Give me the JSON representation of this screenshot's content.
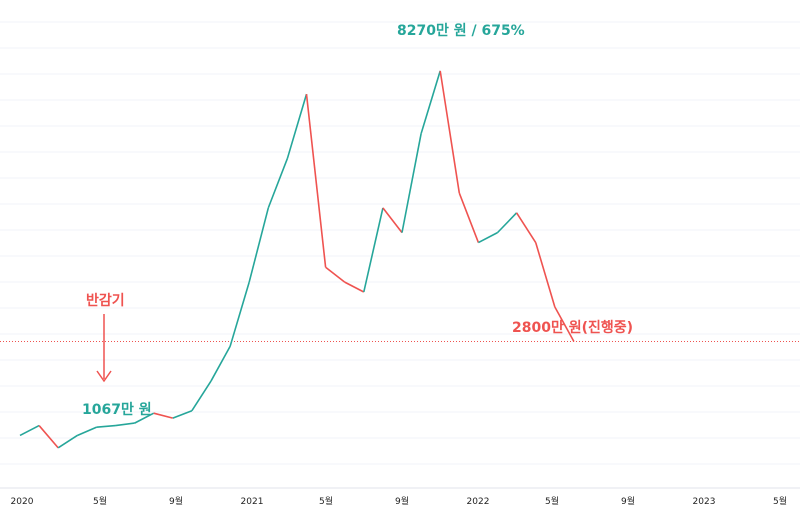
{
  "colors": {
    "up": "#26a69a",
    "down": "#ef5350",
    "grid": "#f0f3fa",
    "axis": "#e0e3eb",
    "dotted": "#ef5350"
  },
  "annotations": {
    "peak": "8270만 원 / 675%",
    "halving": "반감기",
    "halving_price": "1067만 원",
    "current": "2800만 원(진행중)"
  },
  "chart_data": {
    "type": "line",
    "x_ticks": [
      "2020",
      "5월",
      "9월",
      "2021",
      "5월",
      "9월",
      "2022",
      "5월",
      "9월",
      "2023",
      "5월"
    ],
    "y_unit": "만 원",
    "ylim": [
      0,
      9500
    ],
    "reference_line": 2800,
    "points": [
      [
        "2020-01",
        900
      ],
      [
        "2020-02",
        1100
      ],
      [
        "2020-03",
        650
      ],
      [
        "2020-04",
        900
      ],
      [
        "2020-05",
        1067
      ],
      [
        "2020-06",
        1100
      ],
      [
        "2020-07",
        1150
      ],
      [
        "2020-08",
        1350
      ],
      [
        "2020-09",
        1250
      ],
      [
        "2020-10",
        1400
      ],
      [
        "2020-11",
        2000
      ],
      [
        "2020-12",
        2700
      ],
      [
        "2021-01",
        4000
      ],
      [
        "2021-02",
        5500
      ],
      [
        "2021-03",
        6500
      ],
      [
        "2021-04",
        7800
      ],
      [
        "2021-05",
        4300
      ],
      [
        "2021-06",
        4000
      ],
      [
        "2021-07",
        3800
      ],
      [
        "2021-08",
        5500
      ],
      [
        "2021-09",
        5000
      ],
      [
        "2021-10",
        7000
      ],
      [
        "2021-11",
        8270
      ],
      [
        "2021-12",
        5800
      ],
      [
        "2022-01",
        4800
      ],
      [
        "2022-02",
        5000
      ],
      [
        "2022-03",
        5400
      ],
      [
        "2022-04",
        4800
      ],
      [
        "2022-05",
        3500
      ],
      [
        "2022-06",
        2800
      ]
    ]
  }
}
